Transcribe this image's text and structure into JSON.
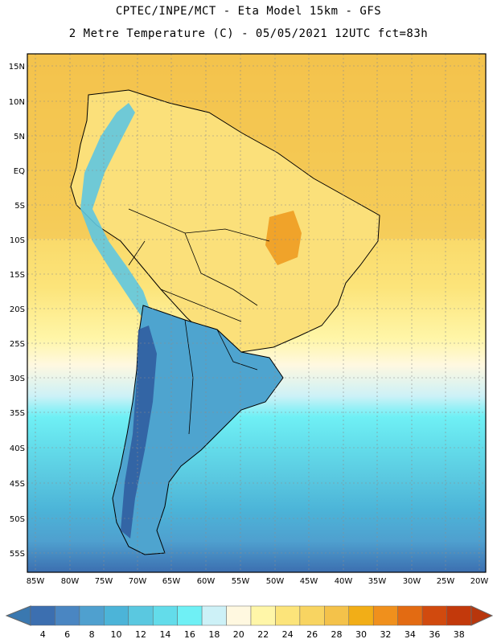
{
  "title_line1": "CPTEC/INPE/MCT -  Eta Model 15km - GFS",
  "title_line2": "2 Metre Temperature (C) - 05/05/2021 12UTC fct=83h",
  "map": {
    "lat_labels": [
      "15N",
      "10N",
      "5N",
      "EQ",
      "5S",
      "10S",
      "15S",
      "20S",
      "25S",
      "30S",
      "35S",
      "40S",
      "45S",
      "50S",
      "55S"
    ],
    "lon_labels": [
      "85W",
      "80W",
      "75W",
      "70W",
      "65W",
      "60W",
      "55W",
      "50W",
      "45W",
      "40W",
      "35W",
      "30W",
      "25W",
      "20W"
    ]
  },
  "colorbar": {
    "labels": [
      "4",
      "6",
      "8",
      "10",
      "12",
      "14",
      "16",
      "18",
      "20",
      "22",
      "24",
      "26",
      "28",
      "30",
      "32",
      "34",
      "36",
      "38"
    ],
    "colors": [
      "#3c6fb0",
      "#4a86c2",
      "#4fa0cf",
      "#4cb4d8",
      "#5ac8e0",
      "#63dcea",
      "#6ff0f5",
      "#cdf1f7",
      "#fff8e0",
      "#fff6a8",
      "#fce47a",
      "#f8d461",
      "#f4c24a",
      "#f2ae17",
      "#f0901c",
      "#e36b12",
      "#d14a0e",
      "#c3390b"
    ],
    "under_color": "#3a78b0",
    "over_color": "#b8360c"
  }
}
